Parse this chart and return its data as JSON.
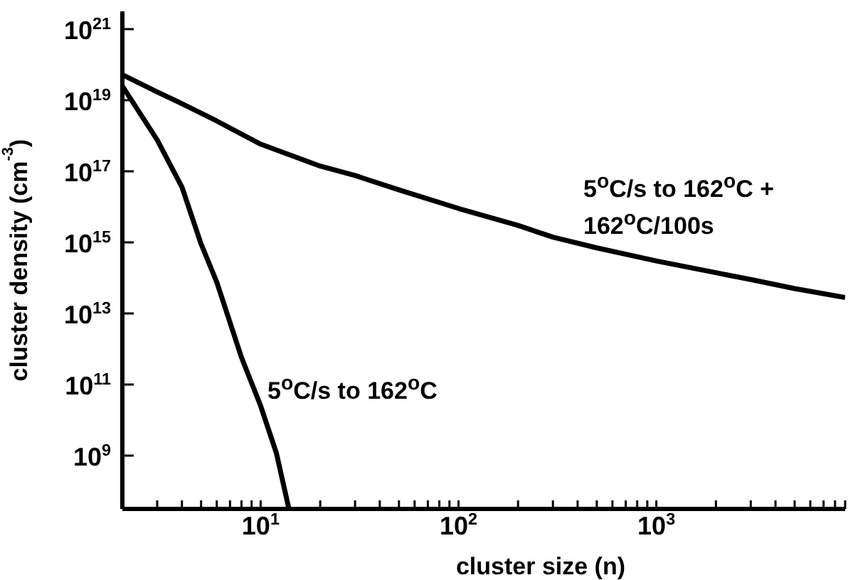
{
  "chart_data": {
    "type": "line",
    "xlabel": "cluster size (n)",
    "ylabel": "cluster density (cm$^{-3}$)",
    "log": "xy",
    "grid": false,
    "legend": false,
    "marker": "none",
    "line_style": "solid",
    "xlim": [
      2,
      9000
    ],
    "ylim": [
      31600000.0,
      3.16e+21
    ],
    "xticks": [
      {
        "value": 2,
        "label": null
      },
      {
        "value": 3,
        "label": null
      },
      {
        "value": 4,
        "label": null
      },
      {
        "value": 5,
        "label": null
      },
      {
        "value": 6,
        "label": null
      },
      {
        "value": 7,
        "label": null
      },
      {
        "value": 8,
        "label": null
      },
      {
        "value": 9,
        "label": null
      },
      {
        "value": 10,
        "label": "10$^{1}$"
      },
      {
        "value": 20,
        "label": null
      },
      {
        "value": 30,
        "label": null
      },
      {
        "value": 40,
        "label": null
      },
      {
        "value": 50,
        "label": null
      },
      {
        "value": 60,
        "label": null
      },
      {
        "value": 70,
        "label": null
      },
      {
        "value": 80,
        "label": null
      },
      {
        "value": 90,
        "label": null
      },
      {
        "value": 100,
        "label": "10$^{2}$"
      },
      {
        "value": 200,
        "label": null
      },
      {
        "value": 300,
        "label": null
      },
      {
        "value": 400,
        "label": null
      },
      {
        "value": 500,
        "label": null
      },
      {
        "value": 600,
        "label": null
      },
      {
        "value": 700,
        "label": null
      },
      {
        "value": 800,
        "label": null
      },
      {
        "value": 900,
        "label": null
      },
      {
        "value": 1000,
        "label": "10$^{3}$"
      },
      {
        "value": 2000,
        "label": null
      },
      {
        "value": 3000,
        "label": null
      },
      {
        "value": 4000,
        "label": null
      },
      {
        "value": 5000,
        "label": null
      },
      {
        "value": 6000,
        "label": null
      },
      {
        "value": 7000,
        "label": null
      },
      {
        "value": 8000,
        "label": null
      },
      {
        "value": 9000,
        "label": null
      }
    ],
    "yticks": [
      {
        "value": 1000000000.0,
        "label": "10$^{9}$"
      },
      {
        "value": 100000000000.0,
        "label": "10$^{11}$"
      },
      {
        "value": 10000000000000.0,
        "label": "10$^{13}$"
      },
      {
        "value": 1000000000000000.0,
        "label": "10$^{15}$"
      },
      {
        "value": 1e+17,
        "label": "10$^{17}$"
      },
      {
        "value": 1e+19,
        "label": "10$^{19}$"
      },
      {
        "value": 1e+21,
        "label": "10$^{21}$"
      }
    ],
    "series": [
      {
        "name": "5$^{o}$C/s to 162$^{o}$C",
        "color": "#000000",
        "x": [
          2,
          3,
          4,
          5,
          6,
          8,
          10,
          12,
          13.9
        ],
        "values": [
          2.5e+19,
          7.6e+17,
          3.6e+16,
          900000000000000.0,
          76000000000000.0,
          580000000000.0,
          25000000000.0,
          1200000000.0,
          31600000.0
        ]
      },
      {
        "name": "5$^{o}$C/s to 162$^{o}$C +\n162$^{o}$C/100s",
        "color": "#000000",
        "x": [
          2,
          3,
          4,
          6,
          10,
          20,
          30,
          50,
          100,
          200,
          300,
          500,
          1000,
          2000,
          3000,
          5000,
          9000
        ],
        "values": [
          5.2e+19,
          1.7e+19,
          8e+18,
          2.6e+18,
          5.8e+17,
          1.4e+17,
          7.6e+16,
          3e+16,
          9000000000000000.0,
          3000000000000000.0,
          1400000000000000.0,
          700000000000000.0,
          300000000000000.0,
          140000000000000.0,
          90000000000000.0,
          50000000000000.0,
          28000000000000.0
        ]
      }
    ]
  }
}
